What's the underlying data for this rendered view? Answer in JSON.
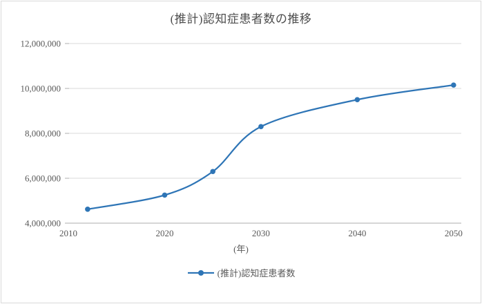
{
  "chart_data": {
    "type": "line",
    "title": "(推計)認知症患者数の推移",
    "xlabel": "(年)",
    "ylabel": "",
    "x": [
      2012,
      2020,
      2025,
      2030,
      2040,
      2050
    ],
    "series": [
      {
        "name": "(推計)認知症患者数",
        "values": [
          4620000,
          5250000,
          6300000,
          8300000,
          9500000,
          10150000
        ]
      }
    ],
    "xlim": [
      2010,
      2050.8
    ],
    "ylim": [
      4000000,
      12000000
    ],
    "x_ticks": [
      2010,
      2020,
      2030,
      2040,
      2050
    ],
    "x_tick_labels": [
      "2010",
      "2020",
      "2030",
      "2040",
      "2050"
    ],
    "y_ticks": [
      4000000,
      6000000,
      8000000,
      10000000,
      12000000
    ],
    "y_tick_labels": [
      "4,000,000",
      "6,000,000",
      "8,000,000",
      "10,000,000",
      "12,000,000"
    ],
    "grid": "horizontal",
    "smooth": true,
    "marker": "circle",
    "legend_position": "bottom"
  },
  "colors": {
    "line": "#2E75B6",
    "grid": "#D9D9D9",
    "axis": "#ACACAC",
    "text": "#595959",
    "title": "#4D4D4D",
    "border": "#D9D9D9",
    "background": "#FFFFFF"
  }
}
